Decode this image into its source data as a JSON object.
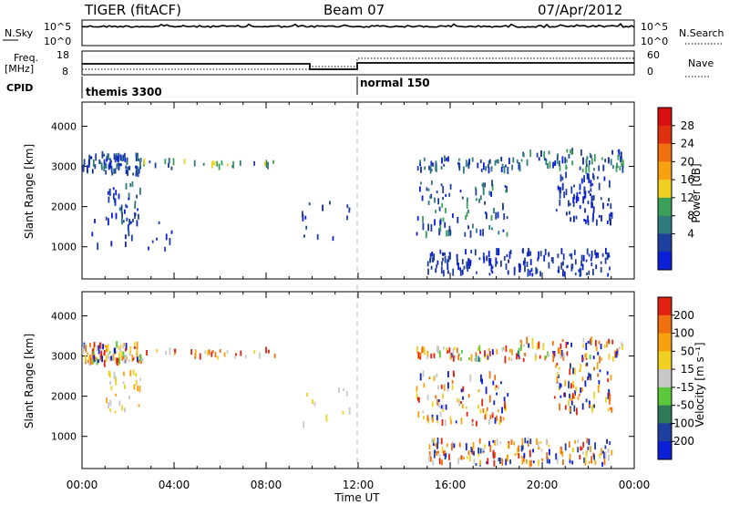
{
  "header": {
    "title": "TIGER (fitACF)",
    "beam": "Beam 07",
    "date": "07/Apr/2012"
  },
  "strips": {
    "nsky_label": "N.Sky",
    "nsky_ticks": [
      "10^5",
      "10^0"
    ],
    "nsearch_label": "N.Search",
    "freq_label_1": "Freq.",
    "freq_label_2": "[MHz]",
    "freq_ticks": [
      "18",
      "8"
    ],
    "nave_ticks": [
      "60",
      "0"
    ],
    "nave_label": "Nave",
    "cpid_label": "CPID",
    "cpid_segments": [
      {
        "name": "themis 3300",
        "start_hour": 0,
        "end_hour": 12
      },
      {
        "name": "normal 150",
        "start_hour": 12,
        "end_hour": 24
      }
    ]
  },
  "chart_data": [
    {
      "type": "scatter",
      "title": "",
      "xlabel": "Time UT",
      "ylabel": "Slant Range [km]",
      "x_ticks": [
        "00:00",
        "04:00",
        "08:00",
        "12:00",
        "16:00",
        "20:00",
        "00:00"
      ],
      "xlim": [
        0,
        24
      ],
      "ylim": [
        200,
        4600
      ],
      "y_ticks": [
        1000,
        2000,
        3000,
        4000
      ],
      "colorbar": {
        "label": "Power [dB]",
        "ticks": [
          "28",
          "24",
          "20",
          "16",
          "12",
          "8",
          "4"
        ],
        "colors": [
          "#0b1fd6",
          "#1f3f9e",
          "#2f7a7a",
          "#3aa05a",
          "#f0d020",
          "#f8a010",
          "#f07010",
          "#e03010",
          "#d81010"
        ]
      },
      "clusters": [
        {
          "t": [
            0.0,
            2.6
          ],
          "r": [
            2800,
            3300
          ],
          "n": 90,
          "cols": [
            0,
            1,
            1,
            2
          ]
        },
        {
          "t": [
            1.0,
            2.5
          ],
          "r": [
            1600,
            2600
          ],
          "n": 40,
          "cols": [
            0,
            1,
            2
          ]
        },
        {
          "t": [
            2.5,
            8.5
          ],
          "r": [
            2950,
            3150
          ],
          "n": 30,
          "cols": [
            2,
            3,
            4,
            1
          ]
        },
        {
          "t": [
            0.4,
            4.0
          ],
          "r": [
            900,
            1700
          ],
          "n": 18,
          "cols": [
            0,
            1
          ]
        },
        {
          "t": [
            9.5,
            11.7
          ],
          "r": [
            1200,
            2200
          ],
          "n": 14,
          "cols": [
            0,
            1
          ]
        },
        {
          "t": [
            14.5,
            19.0
          ],
          "r": [
            2900,
            3200
          ],
          "n": 60,
          "cols": [
            0,
            1,
            2
          ]
        },
        {
          "t": [
            14.5,
            18.5
          ],
          "r": [
            1300,
            2600
          ],
          "n": 90,
          "cols": [
            0,
            1,
            2,
            3
          ]
        },
        {
          "t": [
            15.0,
            23.0
          ],
          "r": [
            300,
            900
          ],
          "n": 160,
          "cols": [
            0,
            1,
            1
          ]
        },
        {
          "t": [
            19.0,
            23.5
          ],
          "r": [
            2900,
            3400
          ],
          "n": 70,
          "cols": [
            0,
            1,
            2,
            3
          ]
        },
        {
          "t": [
            20.5,
            23.0
          ],
          "r": [
            1600,
            2800
          ],
          "n": 80,
          "cols": [
            0,
            1
          ]
        }
      ]
    },
    {
      "type": "scatter",
      "title": "",
      "xlabel": "Time UT",
      "ylabel": "Slant Range [km]",
      "x_ticks": [
        "00:00",
        "04:00",
        "08:00",
        "12:00",
        "16:00",
        "20:00",
        "00:00"
      ],
      "xlim": [
        0,
        24
      ],
      "ylim": [
        200,
        4600
      ],
      "y_ticks": [
        1000,
        2000,
        3000,
        4000
      ],
      "colorbar": {
        "label": "Velocity [m s⁻¹]",
        "ticks": [
          "200",
          "100",
          "50",
          "15",
          "-15",
          "-50",
          "-100",
          "-200"
        ],
        "colors": [
          "#0b1fd6",
          "#1f3f9e",
          "#2f7a5a",
          "#5ac83a",
          "#c8c8c8",
          "#f0d020",
          "#f8a010",
          "#f07010",
          "#e02010"
        ]
      },
      "clusters": [
        {
          "t": [
            0.0,
            2.6
          ],
          "r": [
            2800,
            3300
          ],
          "n": 100,
          "cols": [
            4,
            5,
            6,
            7,
            8,
            0,
            3
          ]
        },
        {
          "t": [
            1.0,
            2.5
          ],
          "r": [
            1600,
            2600
          ],
          "n": 30,
          "cols": [
            4,
            5,
            6
          ]
        },
        {
          "t": [
            2.5,
            8.5
          ],
          "r": [
            2950,
            3150
          ],
          "n": 30,
          "cols": [
            4,
            5,
            6,
            7,
            8
          ]
        },
        {
          "t": [
            9.5,
            11.7
          ],
          "r": [
            1200,
            2200
          ],
          "n": 10,
          "cols": [
            4,
            5
          ]
        },
        {
          "t": [
            14.5,
            19.0
          ],
          "r": [
            2900,
            3200
          ],
          "n": 70,
          "cols": [
            4,
            5,
            6,
            7,
            8,
            0,
            3
          ]
        },
        {
          "t": [
            14.5,
            18.5
          ],
          "r": [
            1300,
            2600
          ],
          "n": 100,
          "cols": [
            4,
            5,
            6,
            7,
            8,
            0
          ]
        },
        {
          "t": [
            15.0,
            23.0
          ],
          "r": [
            300,
            900
          ],
          "n": 170,
          "cols": [
            4,
            5,
            6,
            7,
            8,
            0,
            1
          ]
        },
        {
          "t": [
            19.0,
            23.5
          ],
          "r": [
            2900,
            3400
          ],
          "n": 80,
          "cols": [
            4,
            5,
            6,
            7,
            8,
            0,
            3
          ]
        },
        {
          "t": [
            20.5,
            23.0
          ],
          "r": [
            1600,
            2800
          ],
          "n": 80,
          "cols": [
            0,
            1,
            5,
            6,
            7,
            8
          ]
        }
      ]
    }
  ]
}
